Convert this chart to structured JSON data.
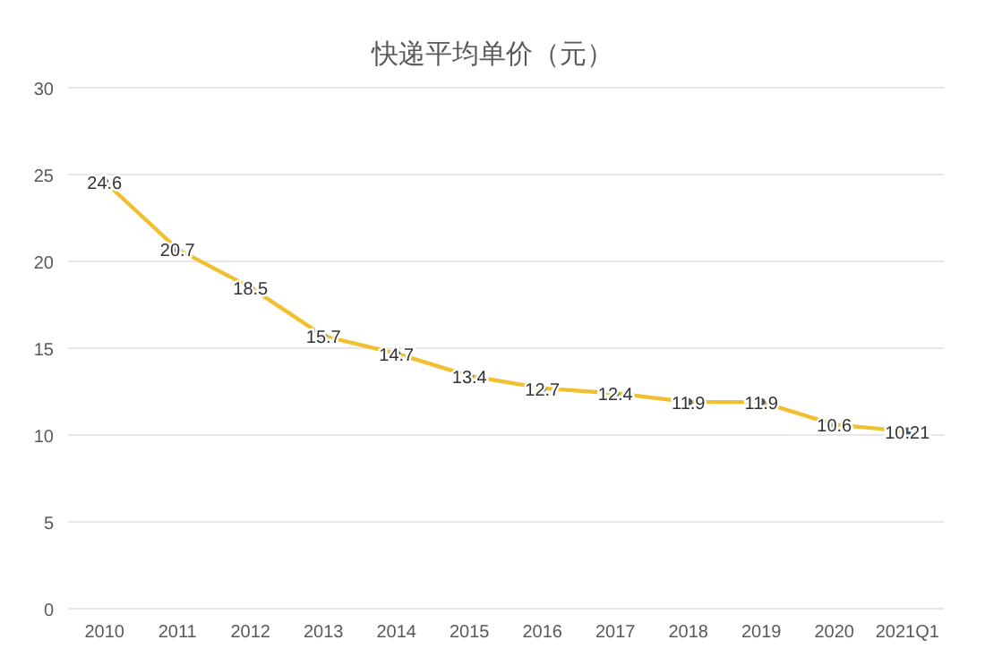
{
  "chart_data": {
    "type": "line",
    "title": "快递平均单价（元）",
    "categories": [
      "2010",
      "2011",
      "2012",
      "2013",
      "2014",
      "2015",
      "2016",
      "2017",
      "2018",
      "2019",
      "2020",
      "2021Q1"
    ],
    "series": [
      {
        "color": "#f0c030",
        "values": [
          24.6,
          20.7,
          18.5,
          15.7,
          14.7,
          13.4,
          12.7,
          12.4,
          11.9,
          11.9,
          10.6,
          10.21
        ]
      }
    ],
    "ylim": [
      0,
      30
    ],
    "yticks": [
      0,
      5,
      10,
      15,
      20,
      25,
      30
    ],
    "grid": "y",
    "marker": "circle",
    "data_labels": true
  }
}
